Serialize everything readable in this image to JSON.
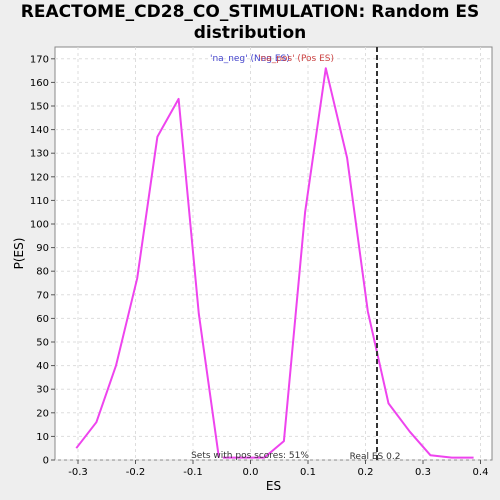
{
  "chart_data": {
    "type": "line",
    "title_lines": [
      "REACTOME_CD28_CO_STIMULATION: Random ES",
      "distribution"
    ],
    "xlabel": "ES",
    "ylabel": "P(ES)",
    "xlim": [
      -0.34,
      0.42
    ],
    "ylim": [
      0,
      175
    ],
    "xticks": [
      -0.3,
      -0.2,
      -0.1,
      0.0,
      0.1,
      0.2,
      0.3,
      0.4
    ],
    "xtick_labels": [
      "-0.3",
      "-0.2",
      "-0.1",
      "0.0",
      "0.1",
      "0.2",
      "0.3",
      "0.4"
    ],
    "yticks": [
      0,
      10,
      20,
      30,
      40,
      50,
      60,
      70,
      80,
      90,
      100,
      110,
      120,
      130,
      140,
      150,
      160,
      170
    ],
    "grid": true,
    "series": [
      {
        "name": "'na_neg' (Neg ES)",
        "color": "#ee44ee",
        "points": [
          [
            -0.303,
            5
          ],
          [
            -0.268,
            16
          ],
          [
            -0.234,
            40
          ],
          [
            -0.197,
            77
          ],
          [
            -0.162,
            137
          ],
          [
            -0.125,
            153
          ],
          [
            -0.09,
            62
          ],
          [
            -0.055,
            1
          ]
        ]
      },
      {
        "name": "'na_pos' (Pos ES)",
        "color": "#ee44ee",
        "points": [
          [
            -0.048,
            1
          ],
          [
            0.0,
            1
          ],
          [
            0.024,
            1
          ],
          [
            0.058,
            8
          ],
          [
            0.095,
            105
          ],
          [
            0.131,
            166
          ],
          [
            0.168,
            128
          ],
          [
            0.204,
            63
          ],
          [
            0.24,
            24
          ],
          [
            0.277,
            12
          ],
          [
            0.313,
            2
          ],
          [
            0.35,
            1
          ],
          [
            0.388,
            1
          ]
        ]
      }
    ],
    "legend": {
      "placement": "top-center",
      "neg_label": "'na_neg' (Neg ES)",
      "neg_color": "#4444cc",
      "pos_label": "'na_pos' (Pos ES)",
      "pos_color": "#cc4444"
    },
    "real_es": {
      "value": 0.22,
      "label": "Real ES 0.2"
    },
    "pos_scores_note": "Sets with pos scores: 51%"
  }
}
